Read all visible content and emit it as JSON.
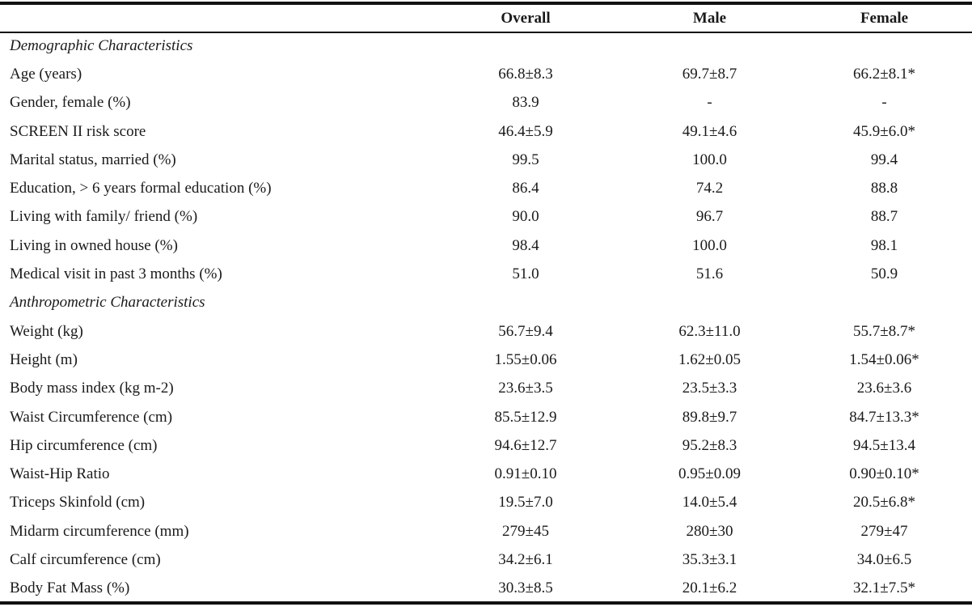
{
  "header": {
    "col_label": "",
    "col_overall": "Overall",
    "col_male": "Male",
    "col_female": "Female"
  },
  "rows": [
    {
      "label": "Demographic Characteristics",
      "section": true,
      "overall": "",
      "male": "",
      "female": ""
    },
    {
      "label": "Age (years)",
      "overall": "66.8±8.3",
      "male": "69.7±8.7",
      "female": "66.2±8.1*"
    },
    {
      "label": "Gender, female (%)",
      "overall": "83.9",
      "male": "-",
      "female": "-"
    },
    {
      "label": "SCREEN II risk score",
      "overall": "46.4±5.9",
      "male": "49.1±4.6",
      "female": "45.9±6.0*"
    },
    {
      "label": "Marital status, married (%)",
      "overall": "99.5",
      "male": "100.0",
      "female": "99.4"
    },
    {
      "label": "Education, > 6 years formal education (%)",
      "overall": "86.4",
      "male": "74.2",
      "female": "88.8"
    },
    {
      "label": "Living with family/ friend (%)",
      "overall": "90.0",
      "male": "96.7",
      "female": "88.7"
    },
    {
      "label": "Living in owned house (%)",
      "overall": "98.4",
      "male": "100.0",
      "female": "98.1"
    },
    {
      "label": "Medical visit in past 3 months (%)",
      "overall": "51.0",
      "male": "51.6",
      "female": "50.9"
    },
    {
      "label": "Anthropometric Characteristics",
      "section": true,
      "overall": "",
      "male": "",
      "female": ""
    },
    {
      "label": "Weight (kg)",
      "overall": "56.7±9.4",
      "male": "62.3±11.0",
      "female": "55.7±8.7*"
    },
    {
      "label": "Height (m)",
      "overall": "1.55±0.06",
      "male": "1.62±0.05",
      "female": "1.54±0.06*"
    },
    {
      "label": "Body mass index (kg m-2)",
      "overall": "23.6±3.5",
      "male": "23.5±3.3",
      "female": "23.6±3.6"
    },
    {
      "label": "Waist Circumference (cm)",
      "overall": "85.5±12.9",
      "male": "89.8±9.7",
      "female": "84.7±13.3*"
    },
    {
      "label": "Hip circumference (cm)",
      "overall": "94.6±12.7",
      "male": "95.2±8.3",
      "female": "94.5±13.4"
    },
    {
      "label": "Waist-Hip Ratio",
      "overall": "0.91±0.10",
      "male": "0.95±0.09",
      "female": "0.90±0.10*"
    },
    {
      "label": "Triceps Skinfold (cm)",
      "overall": "19.5±7.0",
      "male": "14.0±5.4",
      "female": "20.5±6.8*"
    },
    {
      "label": "Midarm circumference (mm)",
      "overall": "279±45",
      "male": "280±30",
      "female": "279±47"
    },
    {
      "label": "Calf circumference (cm)",
      "overall": "34.2±6.1",
      "male": "35.3±3.1",
      "female": "34.0±6.5"
    },
    {
      "label": "Body Fat Mass (%)",
      "overall": "30.3±8.5",
      "male": "20.1±6.2",
      "female": "32.1±7.5*"
    }
  ]
}
